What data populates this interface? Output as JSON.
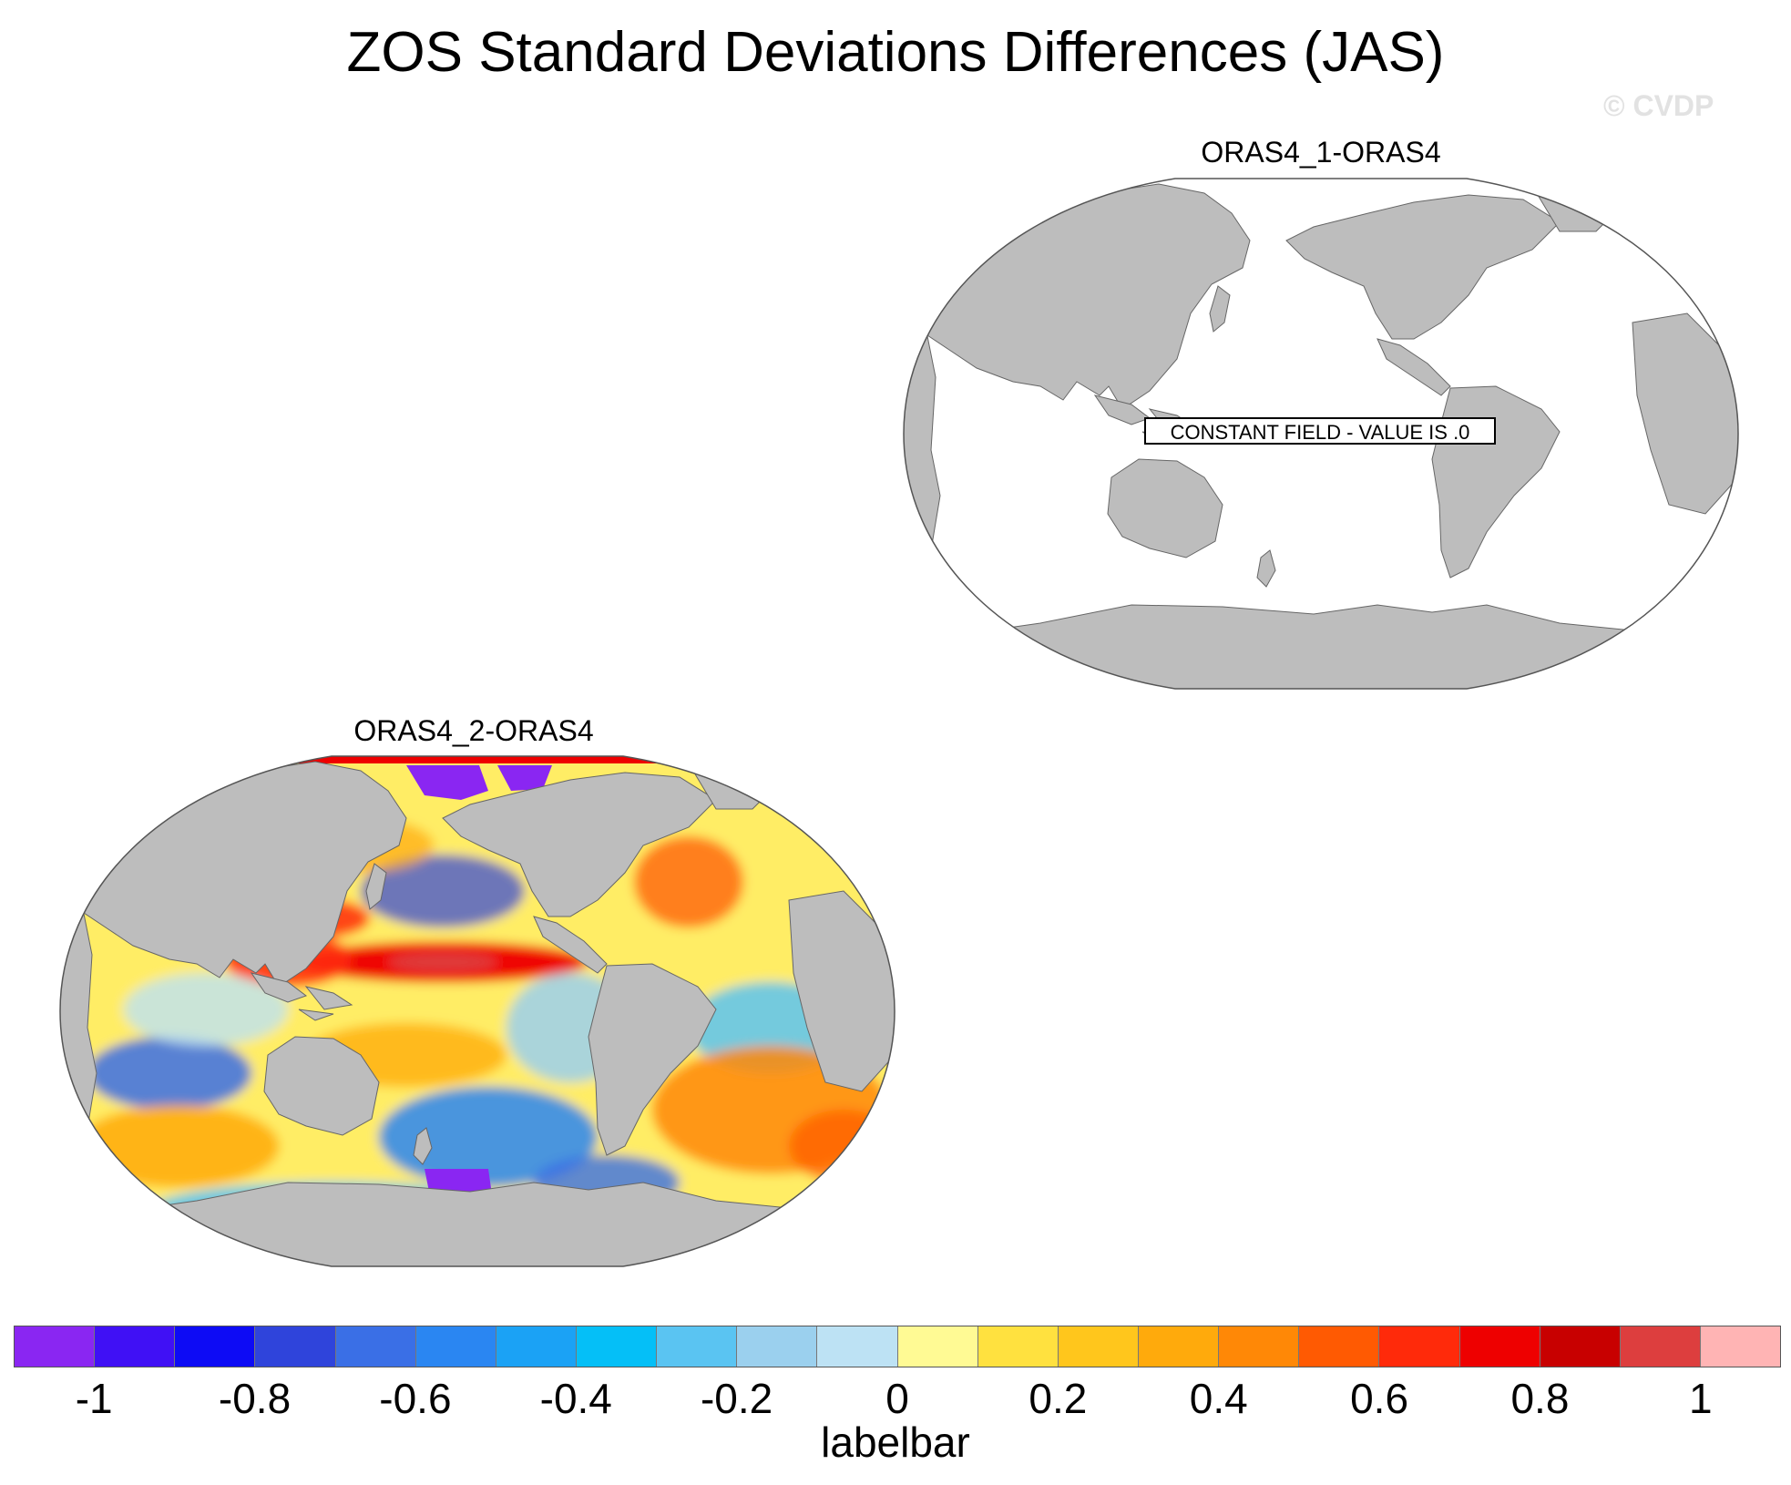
{
  "title": "ZOS Standard Deviations Differences (JAS)",
  "watermark": "© CVDP",
  "panels": [
    {
      "id": "top",
      "title": "ORAS4_1-ORAS4",
      "note": "CONSTANT FIELD - VALUE IS .0",
      "projection": "robinson-pacific-centered",
      "field": "constant-zero"
    },
    {
      "id": "bottom",
      "title": "ORAS4_2-ORAS4",
      "projection": "robinson-pacific-centered",
      "field": "difference",
      "features": [
        {
          "region": "Equatorial central Pacific",
          "value": 0.8
        },
        {
          "region": "Western Pacific / South China Sea",
          "value": 0.7
        },
        {
          "region": "Arctic (Chukchi/Beaufort)",
          "value": -1.0
        },
        {
          "region": "Ross Sea",
          "value": -1.0
        },
        {
          "region": "South Atlantic",
          "value": 0.4
        },
        {
          "region": "Southern Indian Ocean",
          "value": -0.6
        },
        {
          "region": "Kuroshio extension",
          "value": 0.5
        },
        {
          "region": "North Pacific",
          "value": -0.4
        }
      ]
    }
  ],
  "colorbar": {
    "label": "labelbar",
    "min": -1.1,
    "max": 1.1,
    "step": 0.1,
    "tick_labels": [
      "-1",
      "-0.8",
      "-0.6",
      "-0.4",
      "-0.2",
      "0",
      "0.2",
      "0.4",
      "0.6",
      "0.8",
      "1"
    ],
    "tick_values": [
      -1,
      -0.8,
      -0.6,
      -0.4,
      -0.2,
      0,
      0.2,
      0.4,
      0.6,
      0.8,
      1
    ],
    "colors": [
      "#8a26f2",
      "#4010f5",
      "#0d0bf5",
      "#2f44db",
      "#3a6fe6",
      "#2a86f2",
      "#1ba2f5",
      "#05bff7",
      "#5ac4f2",
      "#9bd0ee",
      "#bde2f4",
      "#fffa94",
      "#ffe13f",
      "#ffc61c",
      "#ffaa0c",
      "#ff8806",
      "#ff5a02",
      "#ff2a0a",
      "#ee0000",
      "#c80000",
      "#dd3e3e",
      "#ffb4b4"
    ]
  },
  "colors": {
    "land": "#bdbdbd",
    "ocean_constant": "#ffffff",
    "outline": "#555555"
  }
}
